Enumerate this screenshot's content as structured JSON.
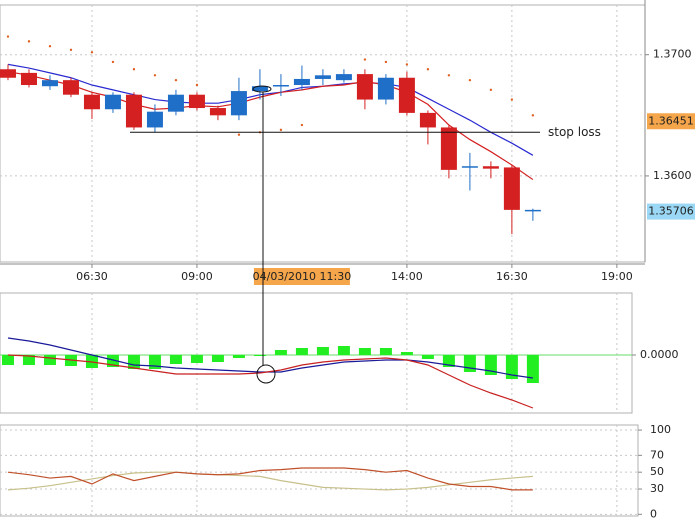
{
  "chart_data": [
    {
      "type": "candlestick",
      "x": [
        4.5,
        5,
        5.5,
        6,
        6.5,
        7,
        7.5,
        8,
        8.5,
        9,
        9.5,
        10,
        10.5,
        11,
        11.5,
        12,
        12.5,
        13,
        13.5,
        14,
        14.5,
        15,
        15.5,
        16,
        16.5,
        17
      ],
      "open": [
        1.3688,
        1.3685,
        1.3674,
        1.3679,
        1.3667,
        1.3655,
        1.3667,
        1.364,
        1.3653,
        1.3667,
        1.3656,
        1.365,
        1.367,
        1.3674,
        1.3675,
        1.368,
        1.3679,
        1.3684,
        1.3663,
        1.3681,
        1.3652,
        1.364,
        1.3607,
        1.3608,
        1.3607,
        1.3571
      ],
      "high": [
        1.3692,
        1.3688,
        1.3683,
        1.3681,
        1.3669,
        1.3669,
        1.3669,
        1.3659,
        1.3671,
        1.3669,
        1.3658,
        1.3681,
        1.3688,
        1.3684,
        1.3691,
        1.3688,
        1.3688,
        1.3688,
        1.3684,
        1.3686,
        1.3654,
        1.3642,
        1.3619,
        1.3612,
        1.3609,
        1.3573
      ],
      "low": [
        1.3679,
        1.3673,
        1.3671,
        1.3665,
        1.3647,
        1.3652,
        1.3638,
        1.3636,
        1.365,
        1.3654,
        1.3646,
        1.3646,
        1.3663,
        1.3666,
        1.3671,
        1.3675,
        1.3677,
        1.3655,
        1.3659,
        1.365,
        1.3626,
        1.3598,
        1.3588,
        1.3598,
        1.3552,
        1.3563
      ],
      "close": [
        1.3681,
        1.3675,
        1.3679,
        1.3667,
        1.3655,
        1.3667,
        1.364,
        1.3653,
        1.3667,
        1.3656,
        1.365,
        1.367,
        1.3674,
        1.3675,
        1.368,
        1.3683,
        1.3684,
        1.3663,
        1.3681,
        1.3652,
        1.364,
        1.3605,
        1.3608,
        1.3606,
        1.3572,
        1.3572
      ],
      "up_color": "#1f6fc8",
      "down_color": "#d42020",
      "series": [
        {
          "color": "#2a2ad0",
          "values": [
            1.3692,
            1.3689,
            1.3685,
            1.3681,
            1.3675,
            1.3671,
            1.3667,
            1.3663,
            1.3661,
            1.366,
            1.366,
            1.3663,
            1.3667,
            1.3669,
            1.3673,
            1.3674,
            1.3676,
            1.3677,
            1.3676,
            1.3673,
            1.3664,
            1.3655,
            1.3646,
            1.3636,
            1.3627,
            1.3617
          ]
        },
        {
          "color": "#d42020",
          "values": [
            1.3686,
            1.3683,
            1.3679,
            1.3675,
            1.3669,
            1.3665,
            1.3659,
            1.3655,
            1.3656,
            1.3658,
            1.3657,
            1.366,
            1.3665,
            1.3669,
            1.3671,
            1.3674,
            1.3675,
            1.3678,
            1.3675,
            1.3669,
            1.3659,
            1.3642,
            1.363,
            1.362,
            1.3609,
            1.3597
          ]
        }
      ],
      "sar": {
        "color": "#e06020",
        "values": [
          1.3715,
          1.3711,
          1.3707,
          1.3704,
          1.3702,
          1.3694,
          1.3688,
          1.3683,
          1.3679,
          1.3675,
          null,
          1.3634,
          1.3636,
          1.3638,
          1.3642,
          null,
          null,
          1.3696,
          1.3694,
          1.3692,
          1.3688,
          1.3683,
          1.3679,
          1.3671,
          1.3663,
          1.365
        ]
      },
      "xlim": [
        4.31,
        19.67
      ],
      "xticks": [
        {
          "value": 6.5,
          "label": "06:30"
        },
        {
          "value": 9,
          "label": "09:00"
        },
        {
          "value": 14,
          "label": "14:00"
        },
        {
          "value": 16.5,
          "label": "16:30"
        },
        {
          "value": 19,
          "label": "19:00"
        }
      ],
      "ylim": [
        1.3529,
        1.3741
      ],
      "yticks": [
        {
          "value": 1.37,
          "label": "1.3700"
        },
        {
          "value": 1.36,
          "label": "1.3600"
        }
      ],
      "grid": true,
      "price_markers": [
        {
          "value": 1.36451,
          "color": "#f5a54a"
        },
        {
          "value": 1.35706,
          "color": "#9ad8f5"
        }
      ],
      "stop_loss": {
        "value": 1.3636,
        "label": "stop loss"
      },
      "crosshair": {
        "value": 11.5,
        "label": "04/03/2010 11:30"
      }
    },
    {
      "type": "bar",
      "x": [
        4.5,
        5,
        5.5,
        6,
        6.5,
        7,
        7.5,
        8,
        8.5,
        9,
        9.5,
        10,
        10.5,
        11,
        11.5,
        12,
        12.5,
        13,
        13.5,
        14,
        14.5,
        15,
        15.5,
        16,
        16.5,
        17
      ],
      "values": [
        -0.0005,
        -0.0005,
        -0.0005,
        -0.00055,
        -0.00065,
        -0.0006,
        -0.0007,
        -0.0007,
        -0.00045,
        -0.0004,
        -0.00035,
        -0.00015,
        -5e-05,
        0.00025,
        0.00035,
        0.0004,
        0.00045,
        0.00035,
        0.00035,
        0.00015,
        -0.0002,
        -0.0006,
        -0.00085,
        -0.001,
        -0.0012,
        -0.0014
      ],
      "color": "#22ee22",
      "series": [
        {
          "color": "#1a1a9a",
          "values": [
            0.00085,
            0.0007,
            0.0005,
            0.00025,
            0,
            -0.00025,
            -0.0005,
            -0.00055,
            -0.00065,
            -0.0007,
            -0.00075,
            -0.0008,
            -0.00085,
            -0.00085,
            -0.00065,
            -0.0005,
            -0.00035,
            -0.0003,
            -0.00025,
            -0.00025,
            -0.00035,
            -0.0005,
            -0.00065,
            -0.0008,
            -0.001,
            -0.00115
          ]
        },
        {
          "color": "#c82020",
          "values": [
            0,
            -5e-05,
            -0.00015,
            -0.00025,
            -0.00035,
            -0.0005,
            -0.00065,
            -0.0008,
            -0.00095,
            -0.00095,
            -0.00095,
            -0.00095,
            -0.0009,
            -0.00075,
            -0.0005,
            -0.00035,
            -0.00025,
            -0.0002,
            -0.00015,
            -0.00025,
            -0.0005,
            -0.001,
            -0.0015,
            -0.0019,
            -0.00225,
            -0.00265
          ]
        }
      ],
      "xlim": [
        4.31,
        19.67
      ],
      "ylim": [
        -0.0029,
        0.0031
      ],
      "yticks": [
        {
          "value": 0,
          "label": "0.0000"
        }
      ],
      "zero_color": "#66dd66"
    },
    {
      "type": "line",
      "x": [
        4.5,
        5,
        5.5,
        6,
        6.5,
        7,
        7.5,
        8,
        8.5,
        9,
        9.5,
        10,
        10.5,
        11,
        11.5,
        12,
        12.5,
        13,
        13.5,
        14,
        14.5,
        15,
        15.5,
        16,
        16.5,
        17
      ],
      "series": [
        {
          "color": "#c8c08a",
          "values": [
            29,
            31,
            34,
            38,
            42,
            46,
            49,
            50,
            50,
            48,
            47,
            46,
            45,
            40,
            36,
            32,
            31,
            30,
            29,
            30,
            32,
            35,
            38,
            41,
            43,
            45
          ]
        },
        {
          "color": "#c0502a",
          "values": [
            50,
            47,
            43,
            45,
            36,
            48,
            40,
            45,
            50,
            48,
            47,
            48,
            52,
            53,
            55,
            55,
            55,
            53,
            50,
            52,
            43,
            36,
            33,
            33,
            29,
            29
          ]
        }
      ],
      "xlim": [
        4.31,
        19.67
      ],
      "ylim": [
        -2,
        106
      ],
      "yticks": [
        100,
        70,
        50,
        30,
        0
      ]
    }
  ]
}
